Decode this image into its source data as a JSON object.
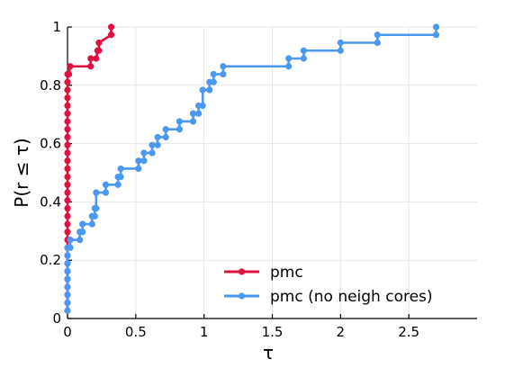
{
  "chart_data": {
    "type": "line",
    "step": true,
    "xlabel": "τ",
    "ylabel": "P(r ≤ τ)",
    "xlim": [
      0,
      3.0
    ],
    "ylim": [
      0,
      1
    ],
    "xticks": [
      0,
      0.5,
      1,
      1.5,
      2,
      2.5
    ],
    "xtick_labels": [
      "0",
      "0.5",
      "1",
      "1.5",
      "2",
      "2.5"
    ],
    "yticks": [
      0,
      0.2,
      0.4,
      0.6,
      0.8,
      1
    ],
    "ytick_labels": [
      "0",
      "0.2",
      "0.4",
      "0.6",
      "0.8",
      "1"
    ],
    "grid": true,
    "legend": "bottom-right",
    "series": [
      {
        "name": "pmc",
        "color": "#e0113f",
        "x": [
          0,
          0,
          0,
          0,
          0,
          0,
          0,
          0,
          0,
          0,
          0,
          0,
          0,
          0,
          0,
          0,
          0,
          0,
          0,
          0,
          0,
          0,
          0,
          0,
          0,
          0,
          0,
          0,
          0,
          0,
          0,
          0.01,
          0.02,
          0.17,
          0.17,
          0.21,
          0.22,
          0.23,
          0.23,
          0.32,
          0.32
        ],
        "y": [
          0.027,
          0.054,
          0.081,
          0.108,
          0.135,
          0.162,
          0.189,
          0.216,
          0.243,
          0.27,
          0.297,
          0.324,
          0.351,
          0.378,
          0.405,
          0.432,
          0.459,
          0.486,
          0.514,
          0.541,
          0.568,
          0.595,
          0.622,
          0.649,
          0.676,
          0.703,
          0.73,
          0.757,
          0.784,
          0.811,
          0.838,
          0.838,
          0.865,
          0.865,
          0.892,
          0.892,
          0.919,
          0.919,
          0.946,
          0.973,
          1.0
        ]
      },
      {
        "name": "pmc (no neigh cores)",
        "color": "#4a98f0",
        "x": [
          0,
          0,
          0,
          0,
          0,
          0,
          0,
          0,
          0,
          0.02,
          0.02,
          0.09,
          0.09,
          0.11,
          0.11,
          0.18,
          0.18,
          0.2,
          0.2,
          0.21,
          0.21,
          0.28,
          0.28,
          0.37,
          0.37,
          0.39,
          0.39,
          0.52,
          0.52,
          0.56,
          0.56,
          0.62,
          0.62,
          0.66,
          0.66,
          0.72,
          0.72,
          0.82,
          0.82,
          0.92,
          0.92,
          0.96,
          0.96,
          0.99,
          0.99,
          1.04,
          1.04,
          1.07,
          1.07,
          1.14,
          1.14,
          1.62,
          1.62,
          1.73,
          1.73,
          2.0,
          2.0,
          2.27,
          2.27,
          2.7,
          2.7
        ],
        "y": [
          0.027,
          0.054,
          0.081,
          0.108,
          0.135,
          0.162,
          0.189,
          0.216,
          0.243,
          0.243,
          0.27,
          0.27,
          0.297,
          0.297,
          0.324,
          0.324,
          0.351,
          0.351,
          0.378,
          0.378,
          0.432,
          0.432,
          0.459,
          0.459,
          0.486,
          0.486,
          0.514,
          0.514,
          0.541,
          0.541,
          0.568,
          0.568,
          0.595,
          0.595,
          0.622,
          0.622,
          0.649,
          0.649,
          0.676,
          0.676,
          0.703,
          0.703,
          0.73,
          0.73,
          0.784,
          0.784,
          0.811,
          0.811,
          0.838,
          0.838,
          0.865,
          0.865,
          0.892,
          0.892,
          0.919,
          0.919,
          0.946,
          0.946,
          0.973,
          0.973,
          1.0
        ]
      }
    ]
  }
}
